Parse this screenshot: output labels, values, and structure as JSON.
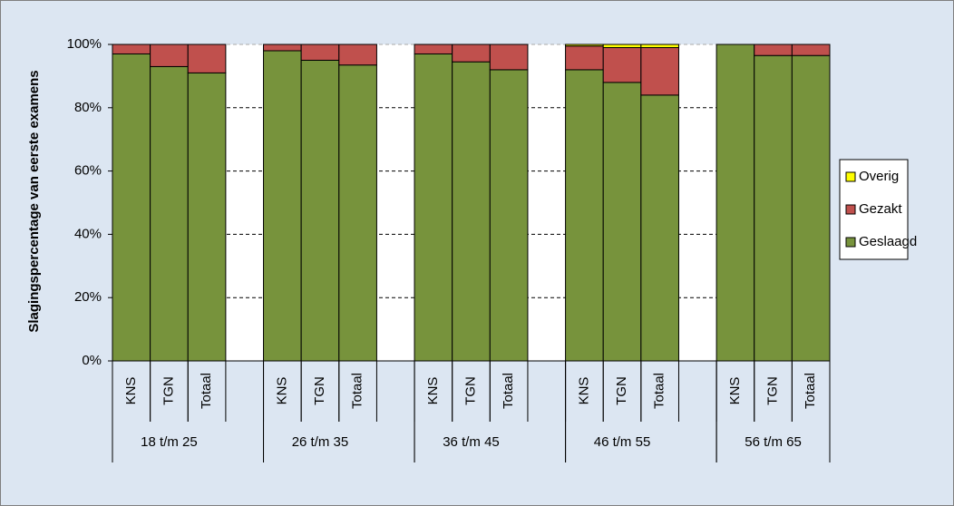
{
  "chart_data": {
    "type": "stacked-bar",
    "y_label": "Slagingspercentage van eerste examens",
    "categories": [
      "KNS",
      "TGN",
      "Totaal",
      null,
      "KNS",
      "TGN",
      "Totaal",
      null,
      "KNS",
      "TGN",
      "Totaal",
      null,
      "KNS",
      "TGN",
      "Totaal",
      null,
      "KNS",
      "TGN",
      "Totaal"
    ],
    "groups": [
      "18 t/m 25",
      "26 t/m 35",
      "36 t/m 45",
      "46 t/m 55",
      "56 t/m 65"
    ],
    "series": [
      {
        "name": "Geslaagd",
        "color": "#77933c",
        "values": [
          97,
          93,
          91,
          null,
          98,
          95,
          93.5,
          null,
          97,
          94.5,
          92,
          null,
          92,
          88,
          84,
          null,
          100,
          96.5,
          96.5
        ]
      },
      {
        "name": "Gezakt",
        "color": "#c0504d",
        "values": [
          3,
          7,
          9,
          null,
          2,
          5,
          6.5,
          null,
          3,
          5.5,
          8,
          null,
          7.5,
          11,
          15,
          null,
          0,
          3.5,
          3.5
        ]
      },
      {
        "name": "Overig",
        "color": "#ffff00",
        "values": [
          0,
          0,
          0,
          null,
          0,
          0,
          0,
          null,
          0,
          0,
          0,
          null,
          0.5,
          1,
          1,
          null,
          0,
          0,
          0
        ]
      }
    ],
    "ylim": [
      0,
      100
    ],
    "yticks": [
      {
        "value": 0,
        "label": "0%"
      },
      {
        "value": 20,
        "label": "20%"
      },
      {
        "value": 40,
        "label": "40%"
      },
      {
        "value": 60,
        "label": "60%"
      },
      {
        "value": 80,
        "label": "80%"
      },
      {
        "value": 100,
        "label": "100%"
      }
    ],
    "grid": true
  }
}
